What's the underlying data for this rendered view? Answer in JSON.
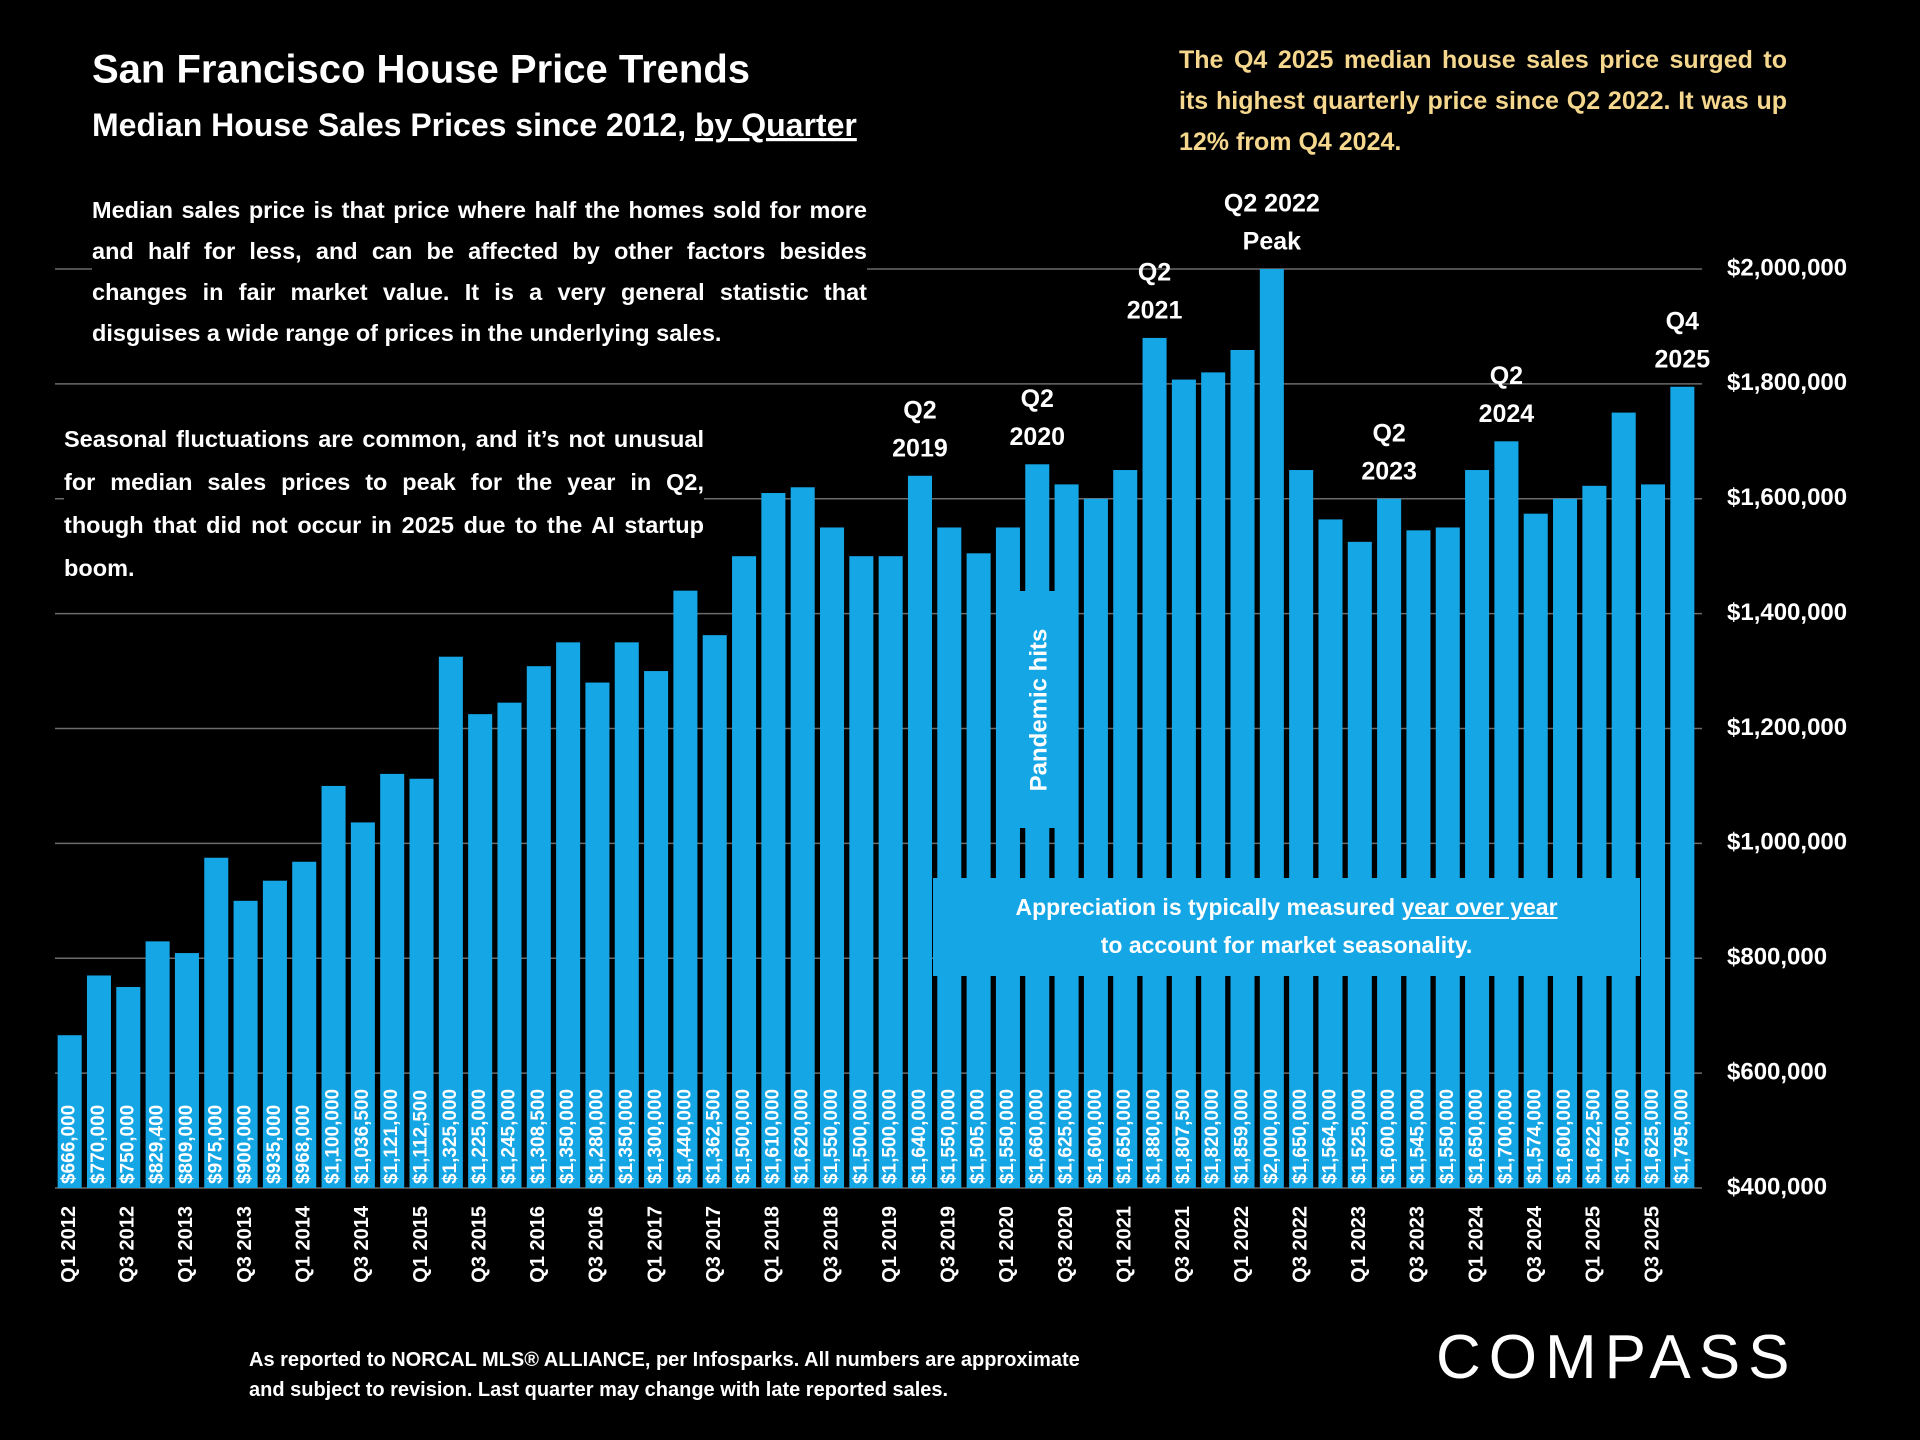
{
  "chart_data": {
    "type": "bar",
    "title": "San Francisco House Price Trends",
    "subtitle": [
      "Median House Sales Prices since 2012, ",
      "by Quarter"
    ],
    "categories": [
      "Q1 2012",
      null,
      "Q3 2012",
      null,
      "Q1 2013",
      null,
      "Q3 2013",
      null,
      "Q1 2014",
      null,
      "Q3 2014",
      null,
      "Q1 2015",
      null,
      "Q3 2015",
      null,
      "Q1 2016",
      null,
      "Q3 2016",
      null,
      "Q1 2017",
      null,
      "Q3 2017",
      null,
      "Q1 2018",
      null,
      "Q3 2018",
      null,
      "Q1 2019",
      null,
      "Q3 2019",
      null,
      "Q1 2020",
      null,
      "Q3 2020",
      null,
      "Q1 2021",
      null,
      "Q3 2021",
      null,
      "Q1 2022",
      null,
      "Q3 2022",
      null,
      "Q1 2023",
      null,
      "Q3 2023",
      null,
      "Q1 2024",
      null,
      "Q3 2024",
      null,
      "Q1 2025",
      null,
      "Q3 2025",
      null
    ],
    "values": [
      666000,
      770000,
      750000,
      829400,
      809000,
      975000,
      900000,
      935000,
      968000,
      1100000,
      1036500,
      1121000,
      1112500,
      1325000,
      1225000,
      1245000,
      1308500,
      1350000,
      1280000,
      1350000,
      1300000,
      1440000,
      1362500,
      1500000,
      1610000,
      1620000,
      1550000,
      1500000,
      1500000,
      1640000,
      1550000,
      1505000,
      1550000,
      1660000,
      1625000,
      1600000,
      1650000,
      1880000,
      1807500,
      1820000,
      1859000,
      2000000,
      1650000,
      1564000,
      1525000,
      1600000,
      1545000,
      1550000,
      1650000,
      1700000,
      1574000,
      1600000,
      1622500,
      1750000,
      1625000,
      1795000
    ],
    "value_labels": [
      "$666,000",
      "$770,000",
      "$750,000",
      "$829,400",
      "$809,000",
      "$975,000",
      "$900,000",
      "$935,000",
      "$968,000",
      "$1,100,000",
      "$1,036,500",
      "$1,121,000",
      "$1,112,500",
      "$1,325,000",
      "$1,225,000",
      "$1,245,000",
      "$1,308,500",
      "$1,350,000",
      "$1,280,000",
      "$1,350,000",
      "$1,300,000",
      "$1,440,000",
      "$1,362,500",
      "$1,500,000",
      "$1,610,000",
      "$1,620,000",
      "$1,550,000",
      "$1,500,000",
      "$1,500,000",
      "$1,640,000",
      "$1,550,000",
      "$1,505,000",
      "$1,550,000",
      "$1,660,000",
      "$1,625,000",
      "$1,600,000",
      "$1,650,000",
      "$1,880,000",
      "$1,807,500",
      "$1,820,000",
      "$1,859,000",
      "$2,000,000",
      "$1,650,000",
      "$1,564,000",
      "$1,525,000",
      "$1,600,000",
      "$1,545,000",
      "$1,550,000",
      "$1,650,000",
      "$1,700,000",
      "$1,574,000",
      "$1,600,000",
      "$1,622,500",
      "$1,750,000",
      "$1,625,000",
      "$1,795,000"
    ],
    "color": "#15a6e6",
    "ylim": [
      400000,
      2000000
    ],
    "yticks": [
      {
        "value": 400000,
        "label": "$400,000"
      },
      {
        "value": 600000,
        "label": "$600,000"
      },
      {
        "value": 800000,
        "label": "$800,000"
      },
      {
        "value": 1000000,
        "label": "$1,000,000"
      },
      {
        "value": 1200000,
        "label": "$1,200,000"
      },
      {
        "value": 1400000,
        "label": "$1,400,000"
      },
      {
        "value": 1600000,
        "label": "$1,600,000"
      },
      {
        "value": 1800000,
        "label": "$1,800,000"
      },
      {
        "value": 2000000,
        "label": "$2,000,000"
      }
    ],
    "grid": true,
    "annotations": [
      [
        "Q2",
        "2019"
      ],
      [
        "Q2",
        "2020"
      ],
      [
        "Q2",
        "2021"
      ],
      [
        "Q2 2022",
        "Peak"
      ],
      [
        "Q2",
        "2023"
      ],
      [
        "Q2",
        "2024"
      ],
      [
        "Q4",
        "2025"
      ]
    ]
  },
  "highlight": "The Q4 2025 median house sales price surged to its highest quarterly price since Q2 2022. It was up 12% from Q4 2024.",
  "notes": [
    "Median sales price is that price where half the homes sold for more and half for less, and can be affected by other factors besides changes in fair market value. It is a very general statistic that disguises a wide range of prices in the underlying sales.",
    "Seasonal fluctuations are common, and it’s not unusual for median sales prices to peak for the year in Q2, though that did not occur in 2025 due to the AI startup boom."
  ],
  "pandemic": "Pandemic hits",
  "appreciation": [
    "Appreciation is typically measured ",
    "year over year",
    "to account for market seasonality."
  ],
  "source": [
    "As reported to NORCAL MLS® ALLIANCE, per Infosparks. All numbers are approximate",
    "and subject to revision. Last quarter may change with late reported sales."
  ],
  "logo": "COMPASS"
}
